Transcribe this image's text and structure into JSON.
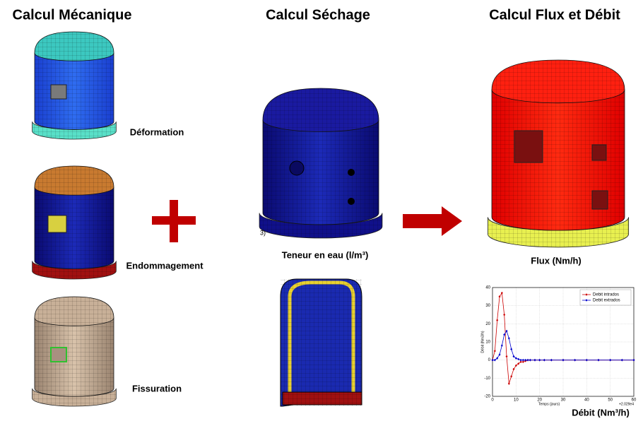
{
  "columns": [
    {
      "title": "Calcul Mécanique",
      "labels": [
        "Déformation",
        "Endommagement",
        "Fissuration"
      ]
    },
    {
      "title": "Calcul Séchage",
      "labels": [
        "Teneur en eau (l/m³)"
      ],
      "clipped_text": "3)"
    },
    {
      "title": "Calcul Flux et Débit",
      "labels": [
        "Flux (Nm/h)",
        "Débit (Nm³/h)"
      ]
    }
  ],
  "chart": {
    "type": "line",
    "x": [
      0,
      1,
      2,
      3,
      4,
      5,
      6,
      7,
      8,
      9,
      10,
      11,
      12,
      13,
      14,
      15,
      16,
      18,
      20,
      22,
      25,
      30,
      35,
      40,
      45,
      50,
      55,
      60
    ],
    "series": [
      {
        "name": "Debit intrados",
        "color": "#cc0000",
        "values": [
          0,
          5,
          22,
          35,
          37,
          25,
          2,
          -13,
          -9,
          -5,
          -3,
          -2,
          -1,
          -1,
          -0.5,
          0,
          0,
          0,
          0,
          0,
          0,
          0,
          0,
          0,
          0,
          0,
          0,
          0
        ]
      },
      {
        "name": "Debit extrados",
        "color": "#0000cc",
        "values": [
          0,
          0,
          1,
          3,
          8,
          14,
          16,
          12,
          6,
          2,
          1,
          0.5,
          0,
          0,
          0,
          0,
          0,
          0,
          0,
          0,
          0,
          0,
          0,
          0,
          0,
          0,
          0,
          0
        ]
      }
    ],
    "xlim": [
      0,
      60
    ],
    "ylim": [
      -20,
      40
    ],
    "xticks": [
      0,
      10,
      20,
      30,
      40,
      50,
      60
    ],
    "yticks": [
      -20,
      -10,
      0,
      10,
      20,
      30,
      40
    ],
    "xlabel": "Temps (jours)",
    "ylabel": "Débit (Nm3/h)",
    "offset_text": "+2.029e4",
    "grid": true,
    "legend": "upper right"
  }
}
